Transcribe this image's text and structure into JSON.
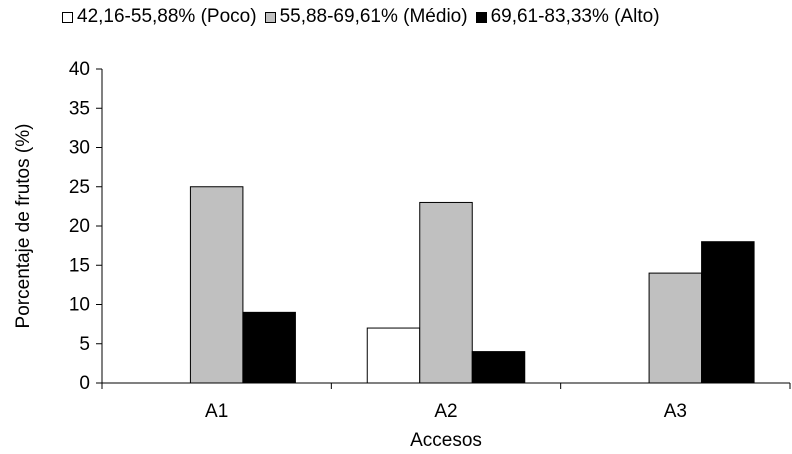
{
  "chart_data": {
    "type": "bar",
    "categories": [
      "A1",
      "A2",
      "A3"
    ],
    "series": [
      {
        "name": "42,16-55,88% (Poco)",
        "color": "#ffffff",
        "values": [
          0,
          7,
          0
        ]
      },
      {
        "name": "55,88-69,61% (Médio)",
        "color": "#c0c0c0",
        "values": [
          25,
          23,
          14
        ]
      },
      {
        "name": "69,61-83,33% (Alto)",
        "color": "#000000",
        "values": [
          9,
          4,
          18
        ]
      }
    ],
    "title": "",
    "xlabel": "Accesos",
    "ylabel": "Porcentaje de frutos (%)",
    "ylim": [
      0,
      40
    ],
    "yticks": [
      "0",
      "5",
      "10",
      "15",
      "20",
      "25",
      "30",
      "35",
      "40"
    ],
    "grid": false,
    "legend_position": "top"
  }
}
